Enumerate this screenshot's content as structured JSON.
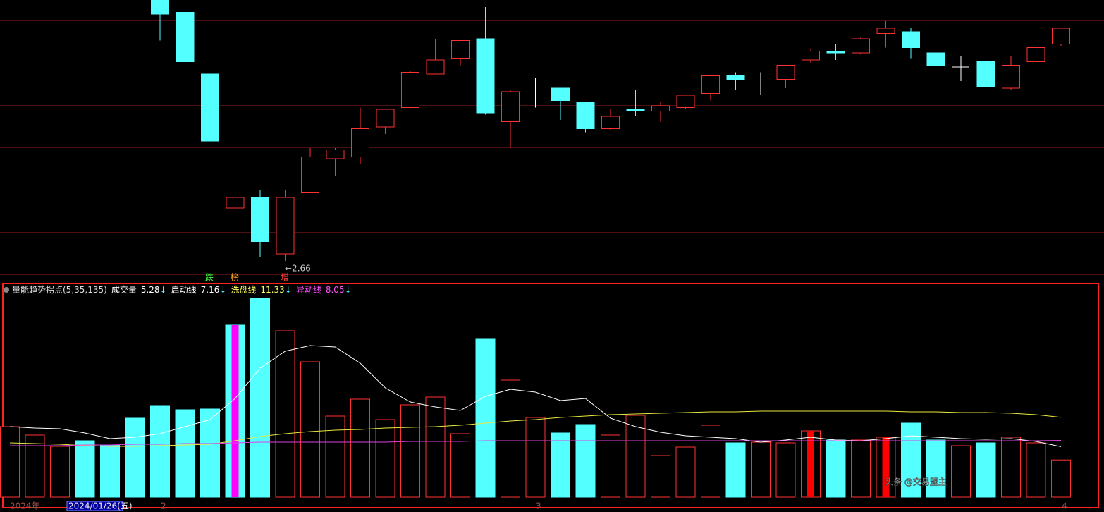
{
  "chart_data": [
    {
      "type": "candlestick",
      "ylim": [
        2.56,
        4.14
      ],
      "up_color": "#ff3232",
      "down_color": "#54ffff",
      "flat_color": "#ffffff",
      "open": [
        null,
        null,
        null,
        null,
        null,
        null,
        4.14,
        4.07,
        3.72,
        2.96,
        3.02,
        2.7,
        3.05,
        3.24,
        3.25,
        3.42,
        3.53,
        3.72,
        3.81,
        3.92,
        3.45,
        3.63,
        3.64,
        3.56,
        3.41,
        3.52,
        3.51,
        3.53,
        3.61,
        3.71,
        3.67,
        3.69,
        3.8,
        3.85,
        3.84,
        3.95,
        3.96,
        3.84,
        3.76,
        3.79,
        3.64,
        3.79,
        3.89
      ],
      "close": [
        null,
        null,
        null,
        null,
        null,
        null,
        4.06,
        3.79,
        3.34,
        3.02,
        2.77,
        3.02,
        3.25,
        3.29,
        3.41,
        3.52,
        3.73,
        3.8,
        3.91,
        3.5,
        3.62,
        3.63,
        3.57,
        3.41,
        3.48,
        3.51,
        3.54,
        3.6,
        3.71,
        3.69,
        3.67,
        3.77,
        3.85,
        3.84,
        3.92,
        3.98,
        3.87,
        3.77,
        3.76,
        3.65,
        3.77,
        3.87,
        3.98
      ],
      "high": [
        null,
        null,
        null,
        null,
        null,
        null,
        4.14,
        4.14,
        3.72,
        3.21,
        3.06,
        3.06,
        3.3,
        3.3,
        3.53,
        3.52,
        3.74,
        3.92,
        3.91,
        4.1,
        3.63,
        3.7,
        3.64,
        3.56,
        3.52,
        3.63,
        3.56,
        3.6,
        3.71,
        3.73,
        3.73,
        3.77,
        3.86,
        3.89,
        3.93,
        4.02,
        3.98,
        3.9,
        3.82,
        3.79,
        3.82,
        3.87,
        3.98
      ],
      "low": [
        null,
        null,
        null,
        null,
        null,
        null,
        3.91,
        3.65,
        3.34,
        2.94,
        2.68,
        2.66,
        3.05,
        3.14,
        3.21,
        3.38,
        3.53,
        3.72,
        3.77,
        3.49,
        3.3,
        3.53,
        3.46,
        3.39,
        3.4,
        3.48,
        3.45,
        3.52,
        3.57,
        3.63,
        3.6,
        3.64,
        3.78,
        3.8,
        3.83,
        3.87,
        3.81,
        3.77,
        3.68,
        3.63,
        3.63,
        3.78,
        3.88
      ],
      "low_label": "←2.66",
      "annotations": [
        {
          "text": "跌",
          "color": "#40ff40"
        },
        {
          "text": "榜",
          "color": "#ffa020"
        },
        {
          "text": "增",
          "color": "#ff4040"
        }
      ]
    },
    {
      "type": "volume",
      "title": "量能趋势拐点(5,35,135)",
      "ylim": [
        0,
        29
      ],
      "series": [
        {
          "name": "成交量",
          "color": "#ffffff",
          "values": [
            10.0,
            8.8,
            7.2,
            8.0,
            7.4,
            11.2,
            13.0,
            12.4,
            12.5,
            24.4,
            28.2,
            23.6,
            19.2,
            11.5,
            13.9,
            11.0,
            13.1,
            14.2,
            9.0,
            22.5,
            16.6,
            11.3,
            9.1,
            10.3,
            8.8,
            11.6,
            5.9,
            7.1,
            10.2,
            7.7,
            7.8,
            7.7,
            9.4,
            8.1,
            8.1,
            8.5,
            10.5,
            8.1,
            7.3,
            7.7,
            8.5,
            7.7,
            5.28
          ],
          "colors": [
            "#ff3232",
            "#ff3232",
            "#ff3232",
            "#54ffff",
            "#54ffff",
            "#54ffff",
            "#54ffff",
            "#54ffff",
            "#54ffff",
            "#54ffff",
            "#54ffff",
            "#ff3232",
            "#ff3232",
            "#ff3232",
            "#ff3232",
            "#ff3232",
            "#ff3232",
            "#ff3232",
            "#ff3232",
            "#54ffff",
            "#ff3232",
            "#ff3232",
            "#54ffff",
            "#54ffff",
            "#ff3232",
            "#ff3232",
            "#ff3232",
            "#ff3232",
            "#ff3232",
            "#54ffff",
            "#ff3232",
            "#ff3232",
            "#ff3232",
            "#54ffff",
            "#ff3232",
            "#ff3232",
            "#54ffff",
            "#54ffff",
            "#ff3232",
            "#54ffff",
            "#ff3232",
            "#ff3232",
            "#ff3232"
          ],
          "stripes": [
            {
              "index": 9,
              "color": "#ff00ff"
            },
            {
              "index": 32,
              "color": "#ff0000"
            },
            {
              "index": 35,
              "color": "#ff0000"
            }
          ]
        },
        {
          "name": "启动线",
          "color": "#ffffff",
          "values": [
            10.0,
            9.8,
            9.7,
            9.1,
            8.3,
            8.5,
            9.0,
            10.0,
            11.0,
            14.0,
            18.3,
            20.7,
            21.5,
            21.3,
            19.0,
            15.5,
            13.5,
            12.8,
            12.3,
            14.3,
            15.3,
            14.9,
            13.7,
            14.0,
            11.2,
            10.0,
            9.2,
            8.7,
            8.5,
            8.3,
            7.8,
            8.1,
            8.5,
            8.1,
            8.0,
            8.3,
            8.7,
            8.5,
            8.3,
            8.2,
            8.3,
            7.9,
            7.16
          ]
        },
        {
          "name": "洗盘线",
          "color": "#e8e840",
          "values": [
            7.7,
            7.6,
            7.5,
            7.3,
            7.2,
            7.2,
            7.3,
            7.4,
            7.5,
            8.0,
            8.6,
            9.0,
            9.3,
            9.5,
            9.6,
            9.8,
            9.9,
            10.0,
            10.2,
            10.5,
            10.8,
            11.0,
            11.3,
            11.5,
            11.7,
            11.8,
            11.9,
            12.0,
            12.1,
            12.1,
            12.2,
            12.2,
            12.2,
            12.2,
            12.2,
            12.2,
            12.1,
            12.1,
            12.0,
            12.0,
            11.9,
            11.7,
            11.33
          ]
        },
        {
          "name": "异动线",
          "color": "#e040e0",
          "values": [
            7.3,
            7.3,
            7.3,
            7.4,
            7.4,
            7.5,
            7.5,
            7.6,
            7.6,
            7.7,
            7.8,
            7.8,
            7.8,
            7.8,
            7.8,
            7.8,
            7.9,
            7.9,
            7.9,
            8.0,
            8.0,
            8.0,
            8.0,
            8.0,
            8.0,
            8.0,
            8.0,
            8.0,
            8.0,
            8.0,
            8.0,
            8.0,
            8.0,
            8.0,
            8.0,
            8.0,
            8.0,
            8.0,
            8.0,
            8.0,
            8.0,
            8.0,
            8.05
          ]
        }
      ],
      "trend_mark": "↓",
      "x_labels": [
        "2024年",
        "2024/01/26(五)",
        "2",
        "3",
        "4"
      ]
    }
  ],
  "watermark": "头条 @交易盟主"
}
